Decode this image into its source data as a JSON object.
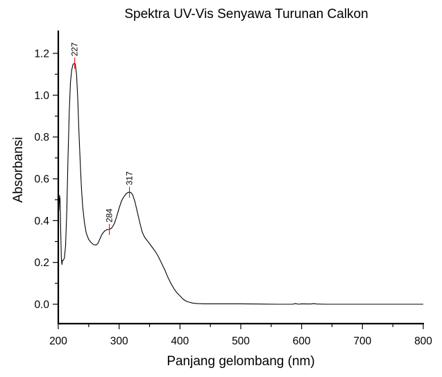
{
  "chart_data": {
    "type": "line",
    "title": "Spektra UV-Vis Senyawa Turunan Calkon",
    "xlabel": "Panjang gelombang (nm)",
    "ylabel": "Absorbansi",
    "xlim": [
      200,
      800
    ],
    "ylim": [
      -0.093,
      1.306
    ],
    "xticks": [
      200,
      300,
      400,
      500,
      600,
      700,
      800
    ],
    "xtick_labels": [
      "200",
      "300",
      "400",
      "500",
      "600",
      "700",
      "800"
    ],
    "yticks": [
      0.0,
      0.2,
      0.4,
      0.6,
      0.8,
      1.0,
      1.2
    ],
    "ytick_labels": [
      "0.0",
      "0.2",
      "0.4",
      "0.6",
      "0.8",
      "1.0",
      "1.2"
    ],
    "grid": false,
    "legend": null,
    "series": [
      {
        "name": "Absorbansi",
        "color": "#000000",
        "x": [
          200,
          201,
          202,
          203,
          204,
          205,
          206,
          207,
          208,
          210,
          212,
          214,
          216,
          218,
          220,
          222,
          224,
          226,
          227,
          228,
          230,
          232,
          234,
          236,
          238,
          240,
          243,
          246,
          250,
          254,
          258,
          262,
          265,
          268,
          272,
          276,
          280,
          284,
          288,
          292,
          296,
          300,
          304,
          308,
          312,
          315,
          317,
          319,
          322,
          326,
          330,
          334,
          338,
          342,
          346,
          350,
          355,
          360,
          365,
          370,
          375,
          380,
          385,
          390,
          395,
          400,
          405,
          410,
          415,
          420,
          425,
          430,
          440,
          460,
          500,
          530,
          560,
          585,
          590,
          595,
          600,
          615,
          620,
          625,
          640,
          700,
          800
        ],
        "y": [
          0.53,
          0.45,
          0.52,
          0.5,
          0.35,
          0.22,
          0.19,
          0.21,
          0.21,
          0.22,
          0.28,
          0.45,
          0.7,
          0.92,
          1.06,
          1.12,
          1.145,
          1.152,
          1.153,
          1.148,
          1.1,
          0.98,
          0.82,
          0.68,
          0.56,
          0.47,
          0.39,
          0.34,
          0.31,
          0.295,
          0.285,
          0.283,
          0.29,
          0.31,
          0.335,
          0.35,
          0.357,
          0.358,
          0.365,
          0.385,
          0.42,
          0.46,
          0.495,
          0.515,
          0.53,
          0.535,
          0.536,
          0.535,
          0.525,
          0.49,
          0.44,
          0.39,
          0.345,
          0.32,
          0.305,
          0.29,
          0.27,
          0.25,
          0.225,
          0.195,
          0.165,
          0.13,
          0.1,
          0.075,
          0.055,
          0.04,
          0.025,
          0.015,
          0.01,
          0.006,
          0.004,
          0.003,
          0.002,
          0.002,
          0.002,
          0.001,
          0.0,
          0.0,
          0.003,
          0.0,
          0.002,
          0.001,
          0.003,
          0.001,
          0.0,
          0.0,
          0.0
        ]
      }
    ],
    "annotations": [
      {
        "label": "227",
        "x": 227,
        "y": 1.153,
        "color": "#ff0000"
      },
      {
        "label": "284",
        "x": 284,
        "y": 0.358,
        "color": "#ff0000"
      },
      {
        "label": "317",
        "x": 317,
        "y": 0.536,
        "color": "#ff0000"
      }
    ]
  }
}
